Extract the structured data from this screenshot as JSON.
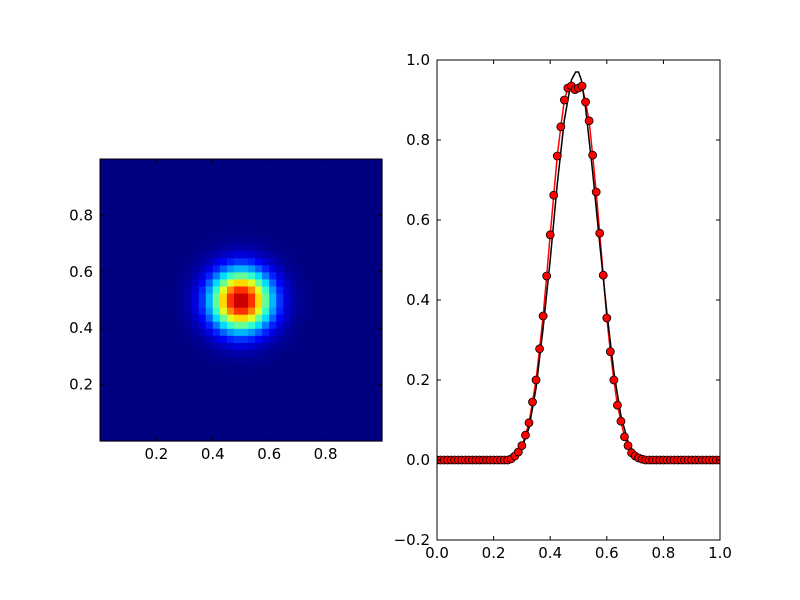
{
  "chart_data": [
    {
      "type": "heatmap",
      "title": "",
      "xlabel": "",
      "ylabel": "",
      "xlim": [
        0,
        1
      ],
      "ylim": [
        0,
        1
      ],
      "grid_cells": 40,
      "colormap": "jet",
      "peak_value": 0.95,
      "peak_center": [
        0.5,
        0.5
      ],
      "gaussian_sigma": 0.075,
      "xticks": [
        "0.2",
        "0.4",
        "0.6",
        "0.8"
      ],
      "yticks": [
        "0.2",
        "0.4",
        "0.6",
        "0.8"
      ],
      "xtick_values": [
        0.2,
        0.4,
        0.6,
        0.8
      ],
      "ytick_values": [
        0.2,
        0.4,
        0.6,
        0.8
      ]
    },
    {
      "type": "line",
      "title": "",
      "xlabel": "",
      "ylabel": "",
      "xlim": [
        0,
        1
      ],
      "ylim": [
        -0.2,
        1.0
      ],
      "grid": false,
      "xticks": [
        "0.0",
        "0.2",
        "0.4",
        "0.6",
        "0.8",
        "1.0"
      ],
      "yticks": [
        "−0.2",
        "0.0",
        "0.2",
        "0.4",
        "0.6",
        "0.8",
        "1.0"
      ],
      "xtick_values": [
        0.0,
        0.2,
        0.4,
        0.6,
        0.8,
        1.0
      ],
      "ytick_values": [
        -0.2,
        0.0,
        0.2,
        0.4,
        0.6,
        0.8,
        1.0
      ],
      "series": [
        {
          "style": "line-with-markers",
          "line_color": "#ff0000",
          "marker_color": "#ff0000",
          "x": [
            0.0,
            0.0125,
            0.025,
            0.0375,
            0.05,
            0.0625,
            0.075,
            0.0875,
            0.1,
            0.1125,
            0.125,
            0.1375,
            0.15,
            0.1625,
            0.175,
            0.1875,
            0.2,
            0.2125,
            0.225,
            0.2375,
            0.25,
            0.2625,
            0.275,
            0.2875,
            0.3,
            0.3125,
            0.325,
            0.3375,
            0.35,
            0.3625,
            0.375,
            0.3875,
            0.4,
            0.4125,
            0.425,
            0.4375,
            0.45,
            0.4625,
            0.475,
            0.4875,
            0.5,
            0.5125,
            0.525,
            0.5375,
            0.55,
            0.5625,
            0.575,
            0.5875,
            0.6,
            0.6125,
            0.625,
            0.6375,
            0.65,
            0.6625,
            0.675,
            0.6875,
            0.7,
            0.7125,
            0.725,
            0.7375,
            0.75,
            0.7625,
            0.775,
            0.7875,
            0.8,
            0.8125,
            0.825,
            0.8375,
            0.85,
            0.8625,
            0.875,
            0.8875,
            0.9,
            0.9125,
            0.925,
            0.9375,
            0.95,
            0.9625,
            0.975,
            0.9875,
            1.0
          ],
          "y": [
            0.0,
            0.0,
            0.0,
            0.0,
            0.0,
            0.0,
            0.0,
            0.0,
            0.0,
            0.0,
            0.0,
            0.0,
            0.0,
            0.0,
            0.0,
            0.0,
            0.0,
            0.0,
            0.0,
            0.0,
            0.0,
            0.003,
            0.01,
            0.02,
            0.036,
            0.062,
            0.093,
            0.145,
            0.2,
            0.278,
            0.36,
            0.46,
            0.563,
            0.662,
            0.76,
            0.833,
            0.9,
            0.93,
            0.935,
            0.926,
            0.93,
            0.935,
            0.895,
            0.848,
            0.762,
            0.67,
            0.567,
            0.462,
            0.355,
            0.271,
            0.2,
            0.137,
            0.097,
            0.058,
            0.036,
            0.018,
            0.01,
            0.005,
            0.002,
            0.0,
            0.0,
            0.0,
            0.0,
            0.0,
            0.0,
            0.0,
            0.0,
            0.0,
            0.0,
            0.0,
            0.0,
            0.0,
            0.0,
            0.0,
            0.0,
            0.0,
            0.0,
            0.0,
            0.0,
            0.0,
            0.0
          ]
        },
        {
          "style": "line",
          "line_color": "#000000",
          "x": [
            0.0,
            0.05,
            0.1,
            0.15,
            0.2,
            0.25,
            0.275,
            0.3,
            0.325,
            0.35,
            0.375,
            0.4,
            0.425,
            0.45,
            0.475,
            0.49,
            0.5,
            0.51,
            0.525,
            0.55,
            0.575,
            0.6,
            0.625,
            0.65,
            0.675,
            0.7,
            0.725,
            0.75,
            0.8,
            0.85,
            0.9,
            0.95,
            1.0
          ],
          "y": [
            0.0,
            0.0,
            0.0,
            0.0,
            0.0,
            0.001,
            0.008,
            0.03,
            0.08,
            0.18,
            0.33,
            0.5,
            0.69,
            0.85,
            0.95,
            0.97,
            0.97,
            0.95,
            0.88,
            0.72,
            0.54,
            0.37,
            0.22,
            0.11,
            0.045,
            0.014,
            0.004,
            0.001,
            0.0,
            0.0,
            0.0,
            0.0,
            0.0
          ]
        }
      ]
    }
  ]
}
